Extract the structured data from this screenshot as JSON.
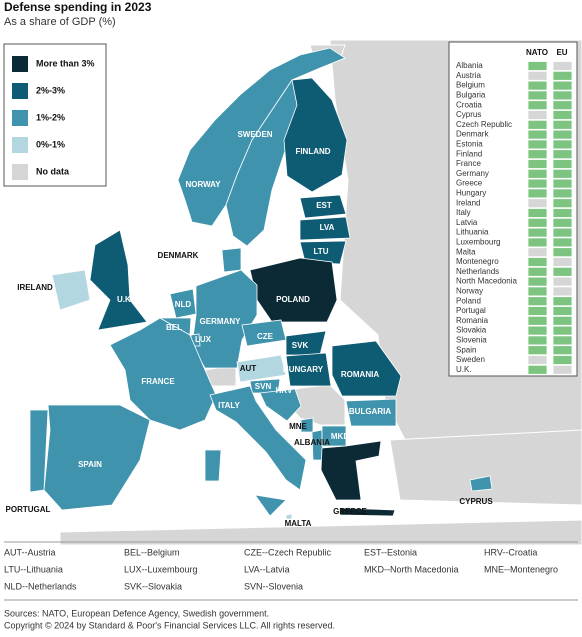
{
  "title": "Defense spending in 2023",
  "subtitle": "As a share of GDP (%)",
  "legend": [
    {
      "label": "More than 3%",
      "color": "#0b2a36"
    },
    {
      "label": "2%-3%",
      "color": "#0e5b74"
    },
    {
      "label": "1%-2%",
      "color": "#3f93ad"
    },
    {
      "label": "0%-1%",
      "color": "#b3d7e0"
    },
    {
      "label": "No data",
      "color": "#d6d6d6"
    }
  ],
  "countries": [
    {
      "label": "NORWAY",
      "category": 2
    },
    {
      "label": "SWEDEN",
      "category": 2
    },
    {
      "label": "FINLAND",
      "category": 1
    },
    {
      "label": "EST",
      "category": 1
    },
    {
      "label": "LVA",
      "category": 1
    },
    {
      "label": "LTU",
      "category": 1
    },
    {
      "label": "DENMARK",
      "category": 2
    },
    {
      "label": "IRELAND",
      "category": 3
    },
    {
      "label": "U.K.",
      "category": 1
    },
    {
      "label": "POLAND",
      "category": 0
    },
    {
      "label": "NLD",
      "category": 2
    },
    {
      "label": "GERMANY",
      "category": 2
    },
    {
      "label": "BEL",
      "category": 2
    },
    {
      "label": "LUX",
      "category": 2
    },
    {
      "label": "CZE",
      "category": 2
    },
    {
      "label": "SVK",
      "category": 1
    },
    {
      "label": "FRANCE",
      "category": 2
    },
    {
      "label": "AUT",
      "category": 3
    },
    {
      "label": "HUNGARY",
      "category": 1
    },
    {
      "label": "ROMANIA",
      "category": 1
    },
    {
      "label": "SVN",
      "category": 2
    },
    {
      "label": "HRV",
      "category": 2
    },
    {
      "label": "ITALY",
      "category": 2
    },
    {
      "label": "BULGARIA",
      "category": 2
    },
    {
      "label": "MNE",
      "category": 2
    },
    {
      "label": "ALBANIA",
      "category": 2
    },
    {
      "label": "MKD",
      "category": 2
    },
    {
      "label": "SPAIN",
      "category": 2
    },
    {
      "label": "PORTUGAL",
      "category": 2
    },
    {
      "label": "MALTA",
      "category": 3
    },
    {
      "label": "GREECE",
      "category": 0
    },
    {
      "label": "CYPRUS",
      "category": 2
    }
  ],
  "membership": {
    "columns": [
      "NATO",
      "EU"
    ],
    "member_color": "#7cc47f",
    "nonmember_color": "#d6d6d6",
    "rows": [
      {
        "country": "Albania",
        "nato": true,
        "eu": false
      },
      {
        "country": "Austria",
        "nato": false,
        "eu": true
      },
      {
        "country": "Belgium",
        "nato": true,
        "eu": true
      },
      {
        "country": "Bulgaria",
        "nato": true,
        "eu": true
      },
      {
        "country": "Croatia",
        "nato": true,
        "eu": true
      },
      {
        "country": "Cyprus",
        "nato": false,
        "eu": true
      },
      {
        "country": "Czech Republic",
        "nato": true,
        "eu": true
      },
      {
        "country": "Denmark",
        "nato": true,
        "eu": true
      },
      {
        "country": "Estonia",
        "nato": true,
        "eu": true
      },
      {
        "country": "Finland",
        "nato": true,
        "eu": true
      },
      {
        "country": "France",
        "nato": true,
        "eu": true
      },
      {
        "country": "Germany",
        "nato": true,
        "eu": true
      },
      {
        "country": "Greece",
        "nato": true,
        "eu": true
      },
      {
        "country": "Hungary",
        "nato": true,
        "eu": true
      },
      {
        "country": "Ireland",
        "nato": false,
        "eu": true
      },
      {
        "country": "Italy",
        "nato": true,
        "eu": true
      },
      {
        "country": "Latvia",
        "nato": true,
        "eu": true
      },
      {
        "country": "Lithuania",
        "nato": true,
        "eu": true
      },
      {
        "country": "Luxembourg",
        "nato": true,
        "eu": true
      },
      {
        "country": "Malta",
        "nato": false,
        "eu": true
      },
      {
        "country": "Montenegro",
        "nato": true,
        "eu": false
      },
      {
        "country": "Netherlands",
        "nato": true,
        "eu": true
      },
      {
        "country": "North Macedonia",
        "nato": true,
        "eu": false
      },
      {
        "country": "Norway",
        "nato": true,
        "eu": false
      },
      {
        "country": "Poland",
        "nato": true,
        "eu": true
      },
      {
        "country": "Portugal",
        "nato": true,
        "eu": true
      },
      {
        "country": "Romania",
        "nato": true,
        "eu": true
      },
      {
        "country": "Slovakia",
        "nato": true,
        "eu": true
      },
      {
        "country": "Slovenia",
        "nato": true,
        "eu": true
      },
      {
        "country": "Spain",
        "nato": true,
        "eu": true
      },
      {
        "country": "Sweden",
        "nato": false,
        "eu": true
      },
      {
        "country": "U.K.",
        "nato": true,
        "eu": false
      }
    ]
  },
  "abbreviations": [
    "AUT--Austria",
    "BEL--Belgium",
    "CZE--Czech Republic",
    "EST--Estonia",
    "HRV--Croatia",
    "LTU--Lithuania",
    "LUX--Luxembourg",
    "LVA--Latvia",
    "MKD--North Macedonia",
    "MNE--Montenegro",
    "NLD--Netherlands",
    "SVK--Slovakia",
    "SVN--Slovenia"
  ],
  "sources": "Sources: NATO, European Defence Agency, Swedish government.",
  "copyright": "Copyright © 2024 by Standard & Poor's Financial Services LLC. All rights reserved."
}
